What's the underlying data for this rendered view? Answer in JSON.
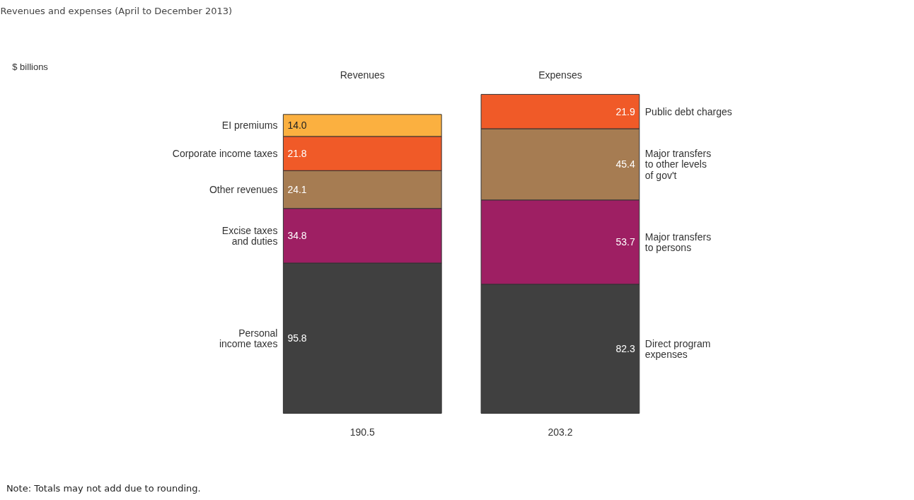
{
  "chart_data": {
    "type": "bar",
    "title": "Revenues and expenses (April to December 2013)",
    "categories": [
      "Revenues",
      "Expenses"
    ],
    "stacked": true,
    "totals": [
      "190.5",
      "203.2"
    ],
    "series": [
      {
        "name": "Personal\nincome taxes",
        "color": "#404040",
        "values": [
          95.8,
          null
        ],
        "value_labels": [
          "95.8",
          null
        ]
      },
      {
        "name": "Excise taxes\nand duties",
        "color": "#9e1f63",
        "values": [
          34.8,
          null
        ],
        "value_labels": [
          "34.8",
          null
        ]
      },
      {
        "name": "Other revenues",
        "color": "#a67c52",
        "values": [
          24.1,
          null
        ],
        "value_labels": [
          "24.1",
          null
        ]
      },
      {
        "name": "Corporate income taxes",
        "color": "#f05a28",
        "values": [
          21.8,
          null
        ],
        "value_labels": [
          "21.8",
          null
        ]
      },
      {
        "name": "EI premiums",
        "color": "#fbb040",
        "values": [
          14.0,
          null
        ],
        "value_labels": [
          "14.0",
          null
        ]
      },
      {
        "name": "Direct program\nexpenses",
        "color": "#404040",
        "values": [
          null,
          82.3
        ],
        "value_labels": [
          null,
          "82.3"
        ]
      },
      {
        "name": "Major transfers\nto persons",
        "color": "#9e1f63",
        "values": [
          null,
          53.7
        ],
        "value_labels": [
          null,
          "53.7"
        ]
      },
      {
        "name": "Major transfers\nto other levels\nof gov't",
        "color": "#a67c52",
        "values": [
          null,
          45.4
        ],
        "value_labels": [
          null,
          "45.4"
        ]
      },
      {
        "name": "Public debt charges",
        "color": "#f05a28",
        "values": [
          null,
          21.9
        ],
        "value_labels": [
          null,
          "21.9"
        ]
      }
    ],
    "annotations": [
      "$ billions",
      "Note: Totals may not add due to rounding."
    ]
  }
}
